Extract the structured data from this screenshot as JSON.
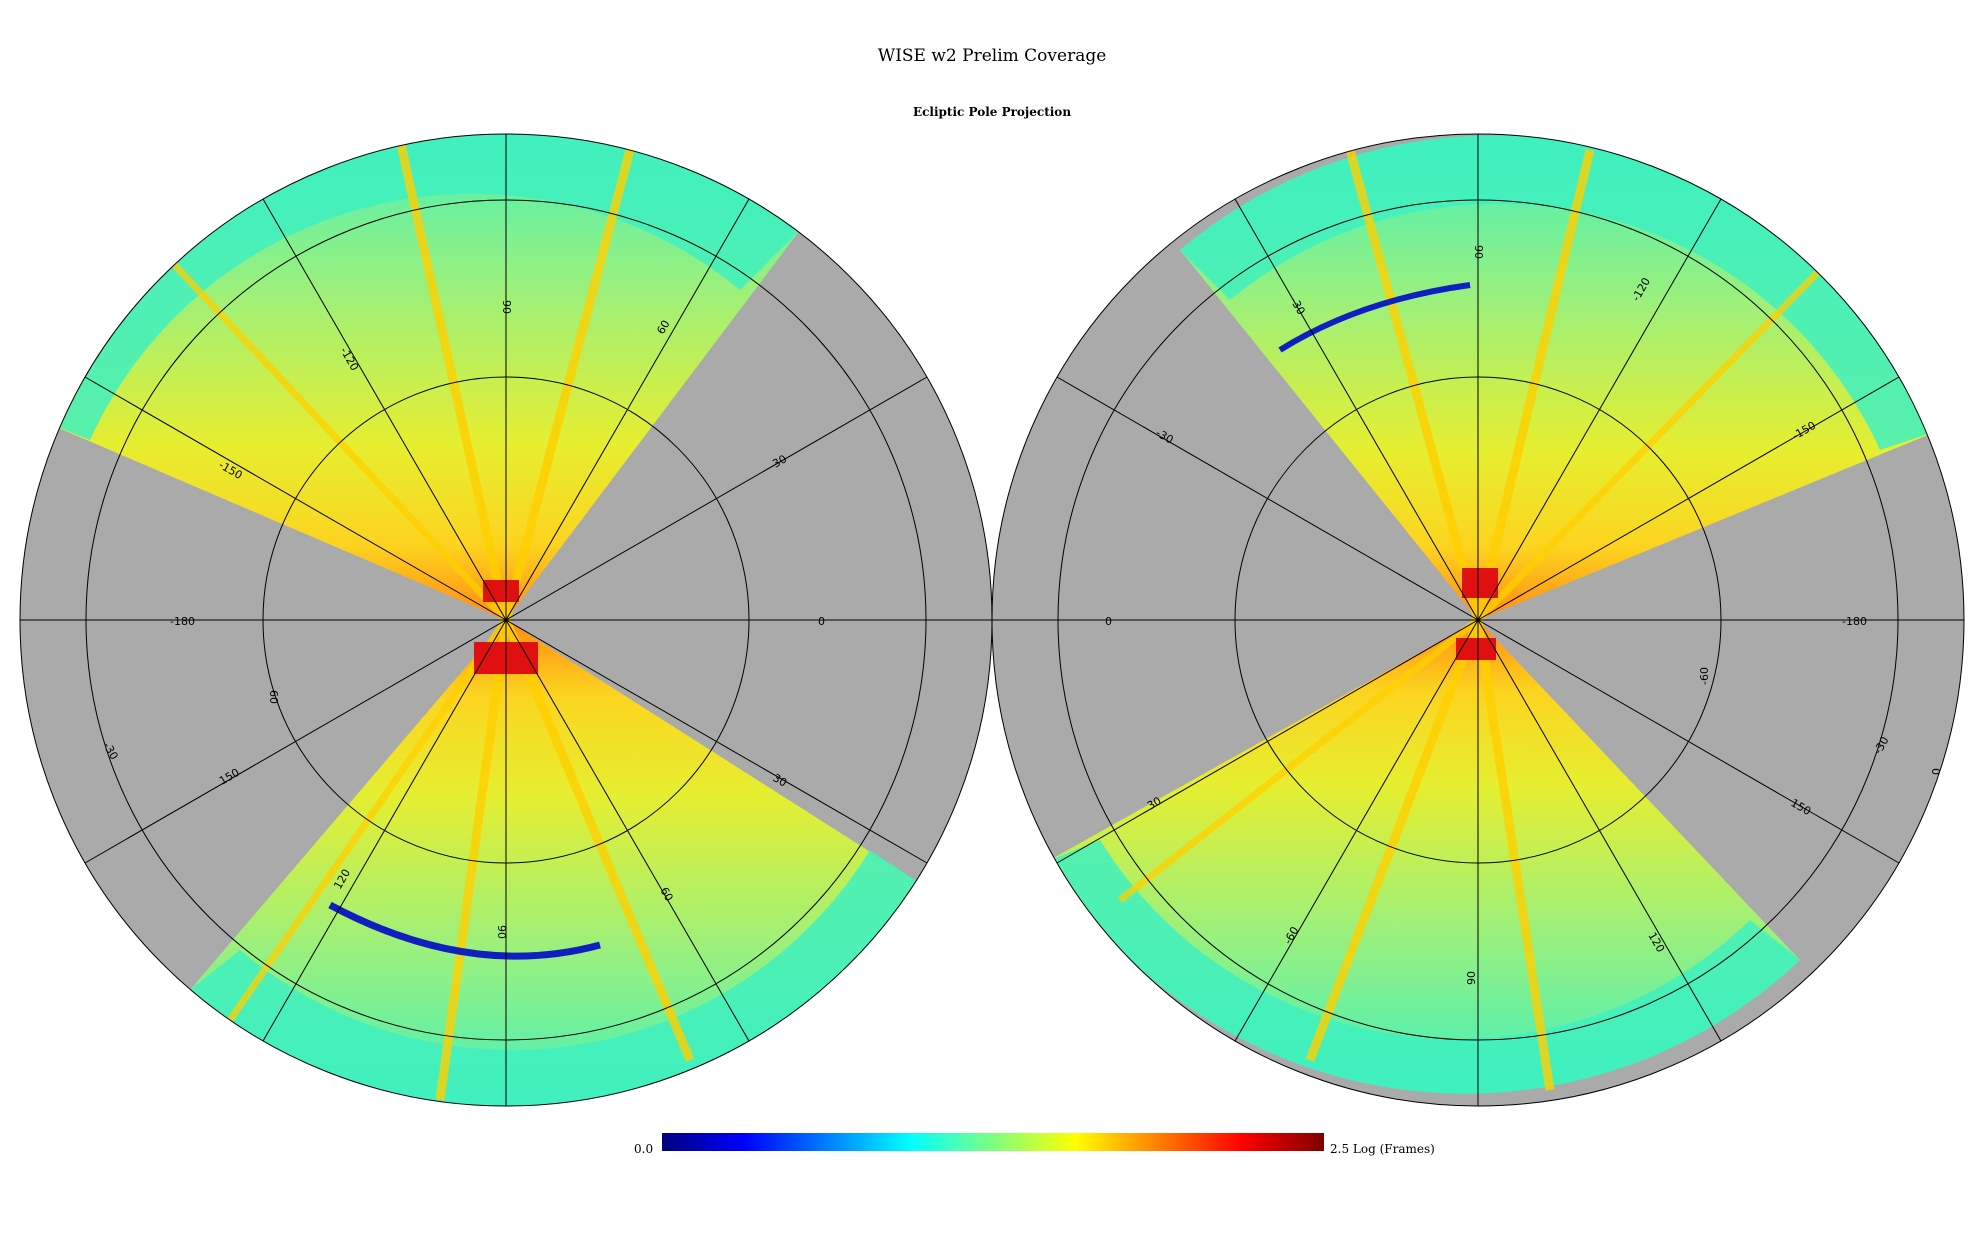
{
  "title": "WISE w2 Prelim Coverage",
  "subtitle": "Ecliptic Pole Projection",
  "colorbar": {
    "min_label": "0.0",
    "max_label": "2.5 Log (Frames)",
    "colors": [
      "#00007f",
      "#0000ff",
      "#007fff",
      "#00ffff",
      "#7fff7f",
      "#ffff00",
      "#ff7f00",
      "#ff0000",
      "#7f0000"
    ]
  },
  "left_hemisphere": {
    "labels": {
      "lon_m180": "-180",
      "lon_0": "0",
      "lon_m150": "-150",
      "lon_m120": "-120",
      "lon_90_top": "90",
      "lon_60_top": "60",
      "lon_m30_right": "-30",
      "lon_m30_left": "-30",
      "lat_60": "60",
      "lon_150": "150",
      "lon_120": "120",
      "lon_90_bottom": "90",
      "lon_60_bottom": "60",
      "lon_30": "30"
    }
  },
  "right_hemisphere": {
    "labels": {
      "lon_0_left": "0",
      "lon_m180": "-180",
      "lon_m30_top": "-30",
      "lon_90_top": "90",
      "lon_m120": "-120",
      "lon_m150": "-150",
      "lon_m30_left": "-30",
      "lat_m60": "-60",
      "lon_m30_right": "-30",
      "lon_0_right": "0",
      "lon_150": "150",
      "lon_30": "30",
      "lon_m60": "-60",
      "lon_120": "120",
      "lon_90_bottom": "90"
    }
  },
  "colors": {
    "no_coverage": "#aaaaaa",
    "background": "#ffffff"
  }
}
